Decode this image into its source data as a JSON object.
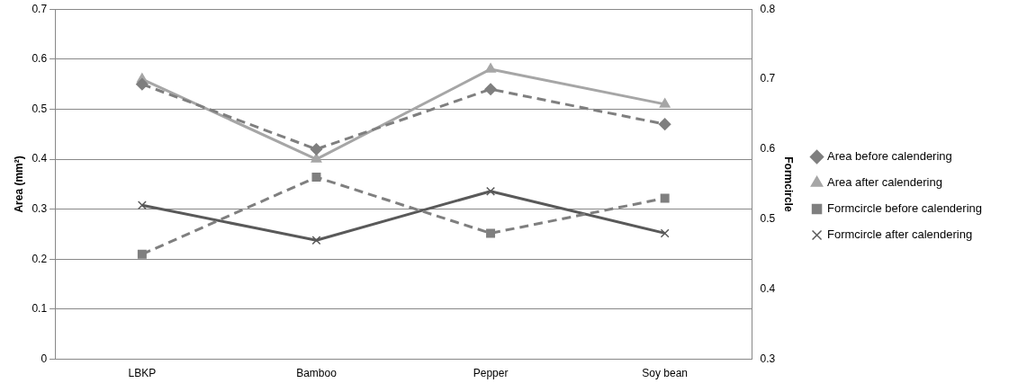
{
  "chart_data": {
    "type": "line",
    "ylabel": "Area (mm²)",
    "y2label": "Formcircle",
    "categories": [
      "LBKP",
      "Bamboo",
      "Pepper",
      "Soy bean"
    ],
    "series": [
      {
        "name": "Area before calendering",
        "color": "#7f7f7f",
        "values": [
          0.55,
          0.42,
          0.54,
          0.47
        ],
        "marker": "diamond",
        "line_style": "dashed"
      },
      {
        "name": "Area after calendering",
        "color": "#a6a6a6",
        "values": [
          0.56,
          0.4,
          0.58,
          0.51
        ],
        "marker": "triangle",
        "line_style": "solid"
      },
      {
        "name": "Formcircle before calendering",
        "color": "#7f7f7f",
        "values": [
          0.45,
          0.56,
          0.48,
          0.53
        ],
        "marker": "square",
        "line_style": "dashed",
        "axis": "y2"
      },
      {
        "name": "Formcircle after calendering",
        "color": "#595959",
        "values": [
          0.52,
          0.47,
          0.54,
          0.48
        ],
        "marker": "cross",
        "line_style": "solid",
        "axis": "y2"
      }
    ],
    "ylim": [
      0,
      0.7
    ],
    "yticks": [
      0,
      0.1,
      0.2,
      0.3,
      0.4,
      0.5,
      0.6,
      0.7
    ],
    "y2lim": [
      0.3,
      0.8
    ],
    "y2ticks": [
      0.3,
      0.4,
      0.5,
      0.6,
      0.7,
      0.8
    ],
    "grid": "y",
    "legend": "right"
  }
}
